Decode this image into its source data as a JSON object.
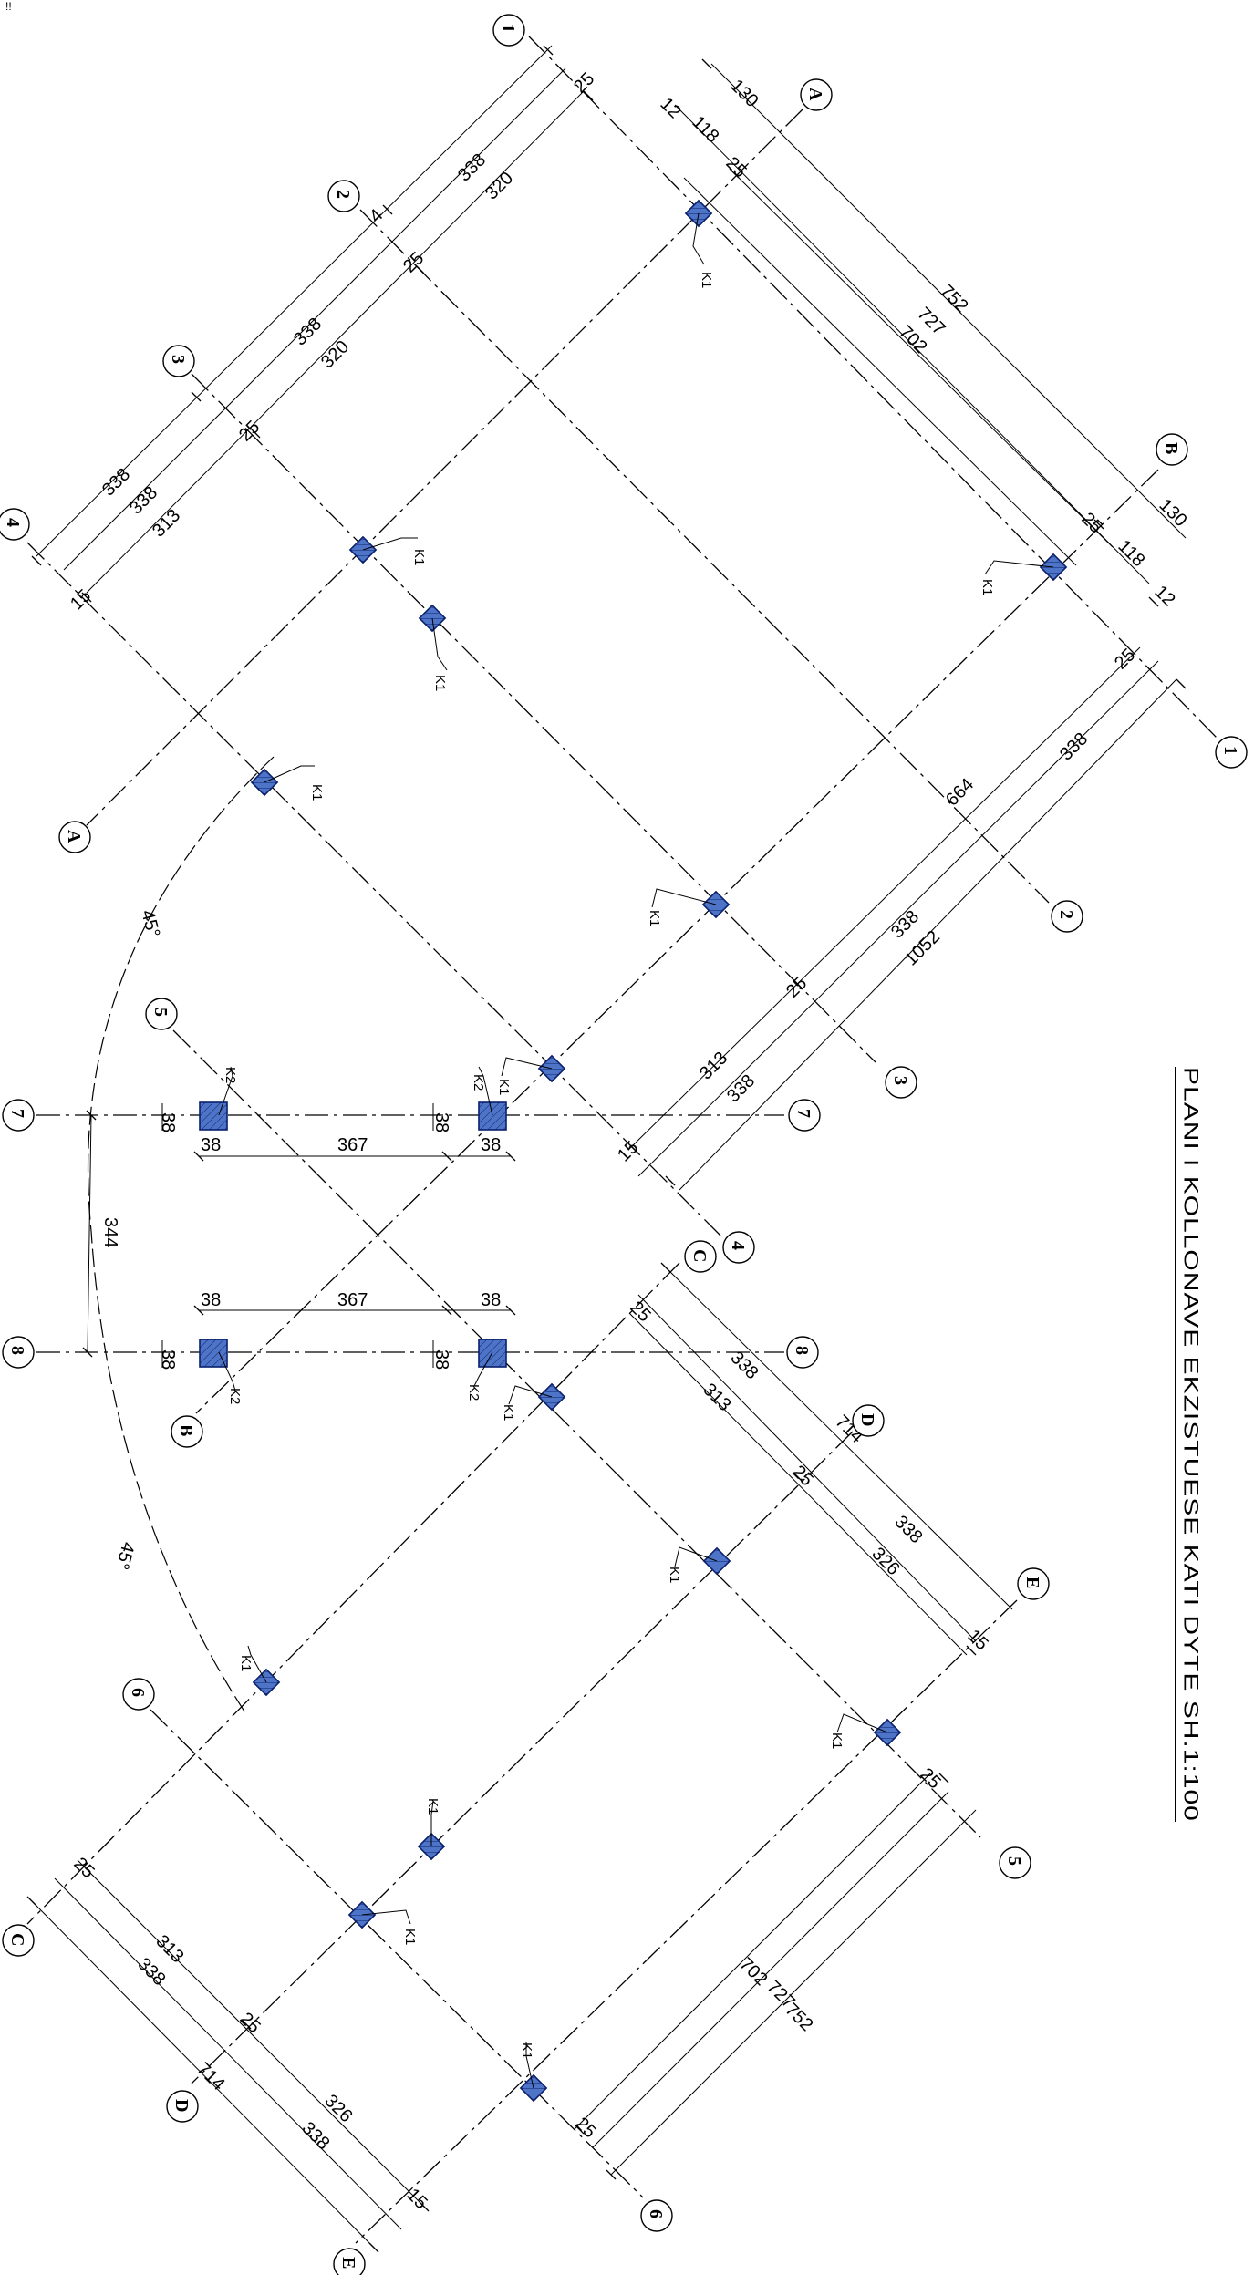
{
  "title": "PLANI I KOLLONAVE EKZISTUESE KATI DYTE  SH.1:100",
  "corner_mark": "!!",
  "grid_labels": [
    "1",
    "2",
    "3",
    "4",
    "5",
    "6",
    "7",
    "8",
    "A",
    "B",
    "C",
    "D",
    "E"
  ],
  "column_types": [
    "K1",
    "K2"
  ],
  "dimensions": {
    "d130": "130",
    "d118": "118",
    "d12": "12",
    "d752": "752",
    "d727": "727",
    "d702": "702",
    "d338": "338",
    "d320": "320",
    "d313": "313",
    "d1052": "1052",
    "d664": "664",
    "d367": "367",
    "d38": "38",
    "d344": "344",
    "d714": "714",
    "d326": "326",
    "d25": "25",
    "d15": "15",
    "d4": "4"
  },
  "angles": {
    "a45": "45°"
  }
}
